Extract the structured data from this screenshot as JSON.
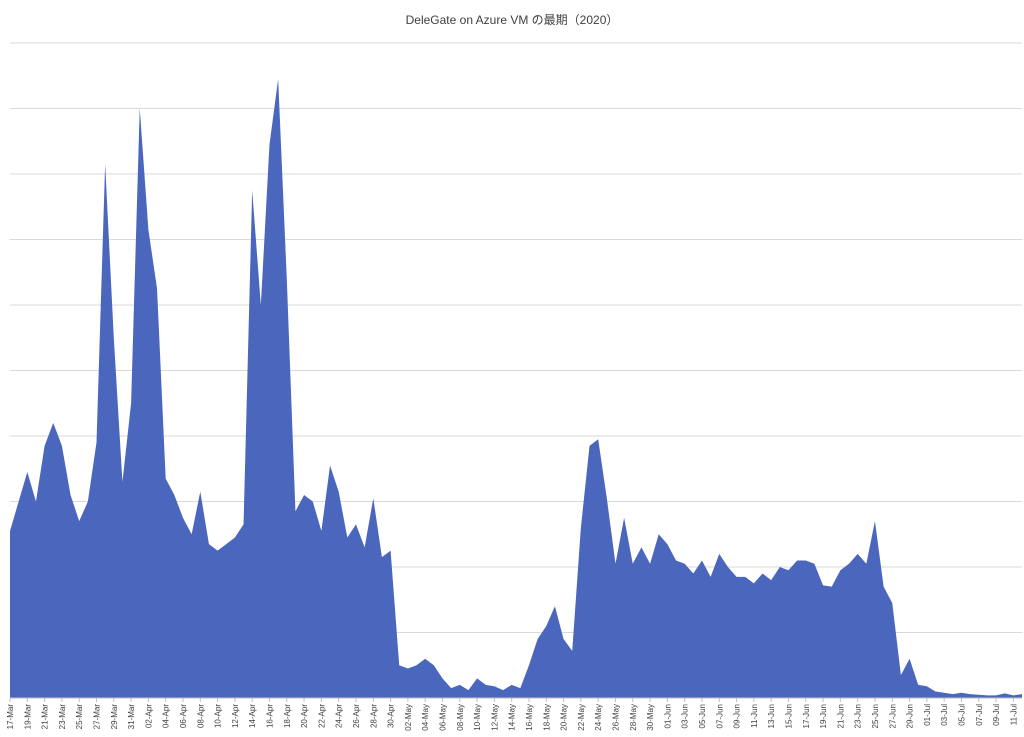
{
  "chart_data": {
    "type": "area",
    "title": "DeleGate on Azure VM の最期（2020）",
    "xlabel": "",
    "ylabel": "",
    "ylim": [
      0,
      10
    ],
    "grid": true,
    "legend": "none",
    "y_tick_labels_visible": false,
    "colors": {
      "fill": "#4A67BD",
      "grid": "#d9d9d9",
      "axis": "#bfbfbf",
      "text": "#404040"
    },
    "x_tick_labels": [
      "17-Mar",
      "19-Mar",
      "21-Mar",
      "23-Mar",
      "25-Mar",
      "27-Mar",
      "29-Mar",
      "31-Mar",
      "02-Apr",
      "04-Apr",
      "06-Apr",
      "08-Apr",
      "10-Apr",
      "12-Apr",
      "14-Apr",
      "16-Apr",
      "18-Apr",
      "20-Apr",
      "22-Apr",
      "24-Apr",
      "26-Apr",
      "28-Apr",
      "30-Apr",
      "02-May",
      "04-May",
      "06-May",
      "08-May",
      "10-May",
      "12-May",
      "14-May",
      "16-May",
      "18-May",
      "20-May",
      "22-May",
      "24-May",
      "26-May",
      "28-May",
      "30-May",
      "01-Jun",
      "03-Jun",
      "05-Jun",
      "07-Jun",
      "09-Jun",
      "11-Jun",
      "13-Jun",
      "15-Jun",
      "17-Jun",
      "19-Jun",
      "21-Jun",
      "23-Jun",
      "25-Jun",
      "27-Jun",
      "29-Jun",
      "01-Jul",
      "03-Jul",
      "05-Jul",
      "07-Jul",
      "09-Jul",
      "11-Jul"
    ],
    "x": [
      "17-Mar",
      "18-Mar",
      "19-Mar",
      "20-Mar",
      "21-Mar",
      "22-Mar",
      "23-Mar",
      "24-Mar",
      "25-Mar",
      "26-Mar",
      "27-Mar",
      "28-Mar",
      "29-Mar",
      "30-Mar",
      "31-Mar",
      "01-Apr",
      "02-Apr",
      "03-Apr",
      "04-Apr",
      "05-Apr",
      "06-Apr",
      "07-Apr",
      "08-Apr",
      "09-Apr",
      "10-Apr",
      "11-Apr",
      "12-Apr",
      "13-Apr",
      "14-Apr",
      "15-Apr",
      "16-Apr",
      "17-Apr",
      "18-Apr",
      "19-Apr",
      "20-Apr",
      "21-Apr",
      "22-Apr",
      "23-Apr",
      "24-Apr",
      "25-Apr",
      "26-Apr",
      "27-Apr",
      "28-Apr",
      "29-Apr",
      "30-Apr",
      "01-May",
      "02-May",
      "03-May",
      "04-May",
      "05-May",
      "06-May",
      "07-May",
      "08-May",
      "09-May",
      "10-May",
      "11-May",
      "12-May",
      "13-May",
      "14-May",
      "15-May",
      "16-May",
      "17-May",
      "18-May",
      "19-May",
      "20-May",
      "21-May",
      "22-May",
      "23-May",
      "24-May",
      "25-May",
      "26-May",
      "27-May",
      "28-May",
      "29-May",
      "30-May",
      "31-May",
      "01-Jun",
      "02-Jun",
      "03-Jun",
      "04-Jun",
      "05-Jun",
      "06-Jun",
      "07-Jun",
      "08-Jun",
      "09-Jun",
      "10-Jun",
      "11-Jun",
      "12-Jun",
      "13-Jun",
      "14-Jun",
      "15-Jun",
      "16-Jun",
      "17-Jun",
      "18-Jun",
      "19-Jun",
      "20-Jun",
      "21-Jun",
      "22-Jun",
      "23-Jun",
      "24-Jun",
      "25-Jun",
      "26-Jun",
      "27-Jun",
      "28-Jun",
      "29-Jun",
      "30-Jun",
      "01-Jul",
      "02-Jul",
      "03-Jul",
      "04-Jul",
      "05-Jul",
      "06-Jul",
      "07-Jul",
      "08-Jul",
      "09-Jul",
      "10-Jul",
      "11-Jul",
      "12-Jul"
    ],
    "values": [
      2.55,
      3.0,
      3.45,
      3.0,
      3.85,
      4.2,
      3.85,
      3.1,
      2.7,
      3.0,
      3.9,
      8.15,
      5.5,
      3.3,
      4.5,
      9.0,
      7.15,
      6.25,
      3.35,
      3.1,
      2.75,
      2.5,
      3.15,
      2.35,
      2.25,
      2.35,
      2.45,
      2.65,
      7.75,
      6.0,
      8.45,
      9.45,
      6.4,
      2.85,
      3.1,
      3.0,
      2.55,
      3.55,
      3.15,
      2.45,
      2.65,
      2.3,
      3.05,
      2.15,
      2.25,
      0.5,
      0.45,
      0.5,
      0.6,
      0.5,
      0.3,
      0.15,
      0.2,
      0.12,
      0.3,
      0.2,
      0.18,
      0.12,
      0.2,
      0.15,
      0.5,
      0.9,
      1.1,
      1.4,
      0.9,
      0.72,
      2.6,
      3.85,
      3.95,
      3.05,
      2.05,
      2.75,
      2.05,
      2.3,
      2.05,
      2.5,
      2.35,
      2.1,
      2.05,
      1.9,
      2.1,
      1.85,
      2.2,
      2.0,
      1.85,
      1.85,
      1.75,
      1.9,
      1.8,
      2.0,
      1.95,
      2.1,
      2.1,
      2.05,
      1.72,
      1.7,
      1.95,
      2.05,
      2.2,
      2.05,
      2.7,
      1.7,
      1.45,
      0.35,
      0.6,
      0.2,
      0.18,
      0.1,
      0.08,
      0.06,
      0.08,
      0.06,
      0.05,
      0.04,
      0.04,
      0.07,
      0.04,
      0.06
    ]
  }
}
